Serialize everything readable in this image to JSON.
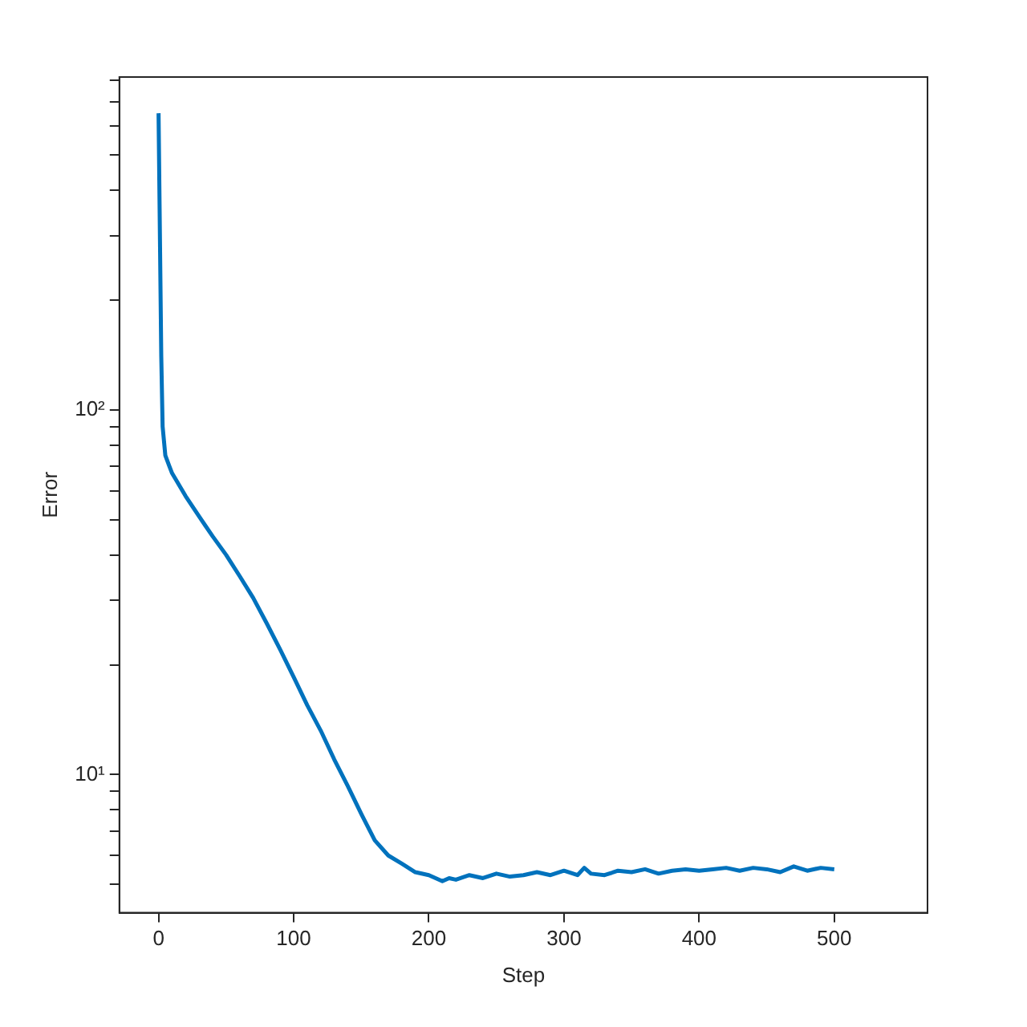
{
  "chart_data": {
    "type": "line",
    "xlabel": "Step",
    "ylabel": "Error",
    "xlim": [
      -29,
      569
    ],
    "xticks": [
      0,
      100,
      200,
      300,
      400,
      500
    ],
    "ylim": [
      4.18,
      817
    ],
    "log": "y",
    "yticks": [
      {
        "value": 5,
        "label": null
      },
      {
        "value": 6,
        "label": null
      },
      {
        "value": 7,
        "label": null
      },
      {
        "value": 8,
        "label": null
      },
      {
        "value": 9,
        "label": null
      },
      {
        "value": 10,
        "label": "10¹"
      },
      {
        "value": 20,
        "label": null
      },
      {
        "value": 30,
        "label": null
      },
      {
        "value": 40,
        "label": null
      },
      {
        "value": 50,
        "label": null
      },
      {
        "value": 60,
        "label": null
      },
      {
        "value": 70,
        "label": null
      },
      {
        "value": 80,
        "label": null
      },
      {
        "value": 90,
        "label": null
      },
      {
        "value": 100,
        "label": "10²"
      },
      {
        "value": 200,
        "label": null
      },
      {
        "value": 300,
        "label": null
      },
      {
        "value": 400,
        "label": null
      },
      {
        "value": 500,
        "label": null
      },
      {
        "value": 600,
        "label": null
      },
      {
        "value": 700,
        "label": null
      },
      {
        "value": 800,
        "label": null
      }
    ],
    "grid": false,
    "legend": false,
    "marker": "none",
    "line_style": "solid",
    "x": [
      0,
      1,
      2,
      3,
      5,
      8,
      10,
      20,
      30,
      40,
      50,
      60,
      70,
      80,
      90,
      100,
      110,
      120,
      130,
      140,
      150,
      160,
      170,
      180,
      190,
      200,
      210,
      215,
      220,
      230,
      240,
      250,
      260,
      270,
      280,
      290,
      300,
      310,
      315,
      320,
      330,
      340,
      350,
      360,
      370,
      380,
      390,
      400,
      410,
      420,
      430,
      440,
      450,
      460,
      470,
      480,
      490,
      500
    ],
    "series": [
      {
        "color": "#0072bd",
        "values": [
          650,
          300,
          140,
          90,
          75,
          70,
          67,
          58,
          51,
          45,
          40,
          35,
          30.5,
          26,
          22,
          18.5,
          15.5,
          13.2,
          11,
          9.3,
          7.8,
          6.6,
          6,
          5.7,
          5.4,
          5.3,
          5.1,
          5.2,
          5.15,
          5.3,
          5.2,
          5.35,
          5.25,
          5.3,
          5.4,
          5.3,
          5.45,
          5.3,
          5.55,
          5.35,
          5.3,
          5.45,
          5.4,
          5.5,
          5.35,
          5.45,
          5.5,
          5.45,
          5.5,
          5.55,
          5.45,
          5.55,
          5.5,
          5.4,
          5.6,
          5.45,
          5.55,
          5.5
        ]
      }
    ]
  }
}
